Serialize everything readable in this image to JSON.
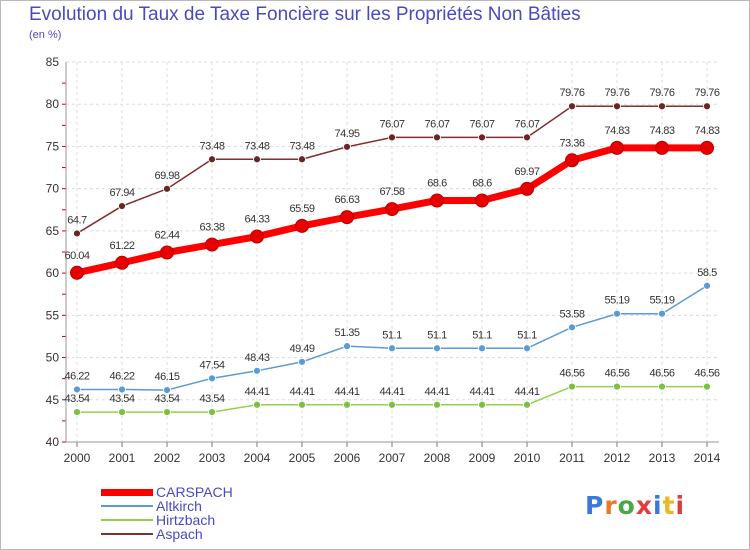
{
  "title": "Evolution du Taux de Taxe Foncière sur les Propriétés Non Bâties",
  "subtitle": "(en %)",
  "logo": {
    "text": "Proxiti",
    "colors": [
      "#3a7ad4",
      "#e8792a",
      "#4aa84a",
      "#e23c3c",
      "#3a7ad4",
      "#e8b82a",
      "#e23c3c"
    ]
  },
  "chart_data": {
    "type": "line",
    "title": "Evolution du Taux de Taxe Foncière sur les Propriétés Non Bâties",
    "ylabel": "(en %)",
    "ylim": [
      40,
      85
    ],
    "yticks": [
      40,
      45,
      50,
      55,
      60,
      65,
      70,
      75,
      80,
      85
    ],
    "x": [
      "2000",
      "2001",
      "2002",
      "2003",
      "2004",
      "2005",
      "2006",
      "2007",
      "2008",
      "2009",
      "2010",
      "2011",
      "2012",
      "2013",
      "2014"
    ],
    "grid": true,
    "legend_position": "bottom-left",
    "series": [
      {
        "name": "CARSPACH",
        "color": "#ff0000",
        "values": [
          60.04,
          61.22,
          62.44,
          63.38,
          64.33,
          65.59,
          66.63,
          67.58,
          68.6,
          68.6,
          69.97,
          73.36,
          74.83,
          74.83,
          74.83
        ],
        "labels": [
          "60.04",
          "61.22",
          "62.44",
          "63.38",
          "64.33",
          "65.59",
          "66.63",
          "67.58",
          "68.6",
          "68.6",
          "69.97",
          "73.36",
          "74.83",
          "74.83",
          "74.83"
        ]
      },
      {
        "name": "Altkirch",
        "color": "#5b9bd5",
        "values": [
          46.22,
          46.22,
          46.15,
          47.54,
          48.43,
          49.49,
          51.35,
          51.1,
          51.1,
          51.1,
          51.1,
          53.58,
          55.19,
          55.19,
          58.5
        ],
        "labels": [
          "46.22",
          "46.22",
          "46.15",
          "47.54",
          "48.43",
          "49.49",
          "51.35",
          "51.1",
          "51.1",
          "51.1",
          "51.1",
          "53.58",
          "55.19",
          "55.19",
          "58.5"
        ]
      },
      {
        "name": "Hirtzbach",
        "color": "#92d050",
        "values": [
          43.54,
          43.54,
          43.54,
          43.54,
          44.41,
          44.41,
          44.41,
          44.41,
          44.41,
          44.41,
          44.41,
          46.56,
          46.56,
          46.56,
          46.56
        ],
        "labels": [
          "43.54",
          "43.54",
          "43.54",
          "43.54",
          "44.41",
          "44.41",
          "44.41",
          "44.41",
          "44.41",
          "44.41",
          "44.41",
          "46.56",
          "46.56",
          "46.56",
          "46.56"
        ]
      },
      {
        "name": "Aspach",
        "color": "#7f2f2f",
        "values": [
          64.7,
          67.94,
          69.98,
          73.48,
          73.48,
          73.48,
          74.95,
          76.07,
          76.07,
          76.07,
          76.07,
          79.76,
          79.76,
          79.76,
          79.76
        ],
        "labels": [
          "64.7",
          "67.94",
          "69.98",
          "73.48",
          "73.48",
          "73.48",
          "74.95",
          "76.07",
          "76.07",
          "76.07",
          "76.07",
          "79.76",
          "79.76",
          "79.76",
          "79.76"
        ]
      }
    ]
  }
}
